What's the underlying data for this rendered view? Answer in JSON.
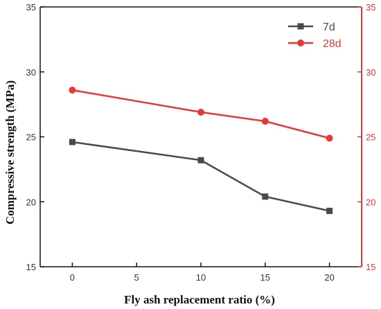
{
  "chart_data": {
    "type": "line",
    "xlabel": "Fly ash replacement ratio (%)",
    "ylabel": "Compressive strength (MPa)",
    "x": [
      0,
      10,
      15,
      20
    ],
    "xticks": [
      0,
      5,
      10,
      15,
      20
    ],
    "xlim": [
      -2.5,
      22.5
    ],
    "ylim": [
      15,
      35
    ],
    "yticks": [
      15,
      20,
      25,
      30,
      35
    ],
    "y2ticks": [
      15,
      20,
      25,
      30,
      35
    ],
    "grid": false,
    "legend_position": "top-right",
    "series": [
      {
        "name": "7d",
        "values": [
          24.6,
          23.2,
          20.4,
          19.3
        ],
        "color": "#4a4a4a",
        "marker": "square"
      },
      {
        "name": "28d",
        "values": [
          28.6,
          26.9,
          26.2,
          24.9
        ],
        "color": "#e53935",
        "marker": "circle"
      }
    ],
    "colors": {
      "left_axis": "#111111",
      "right_axis": "#e53935"
    }
  }
}
